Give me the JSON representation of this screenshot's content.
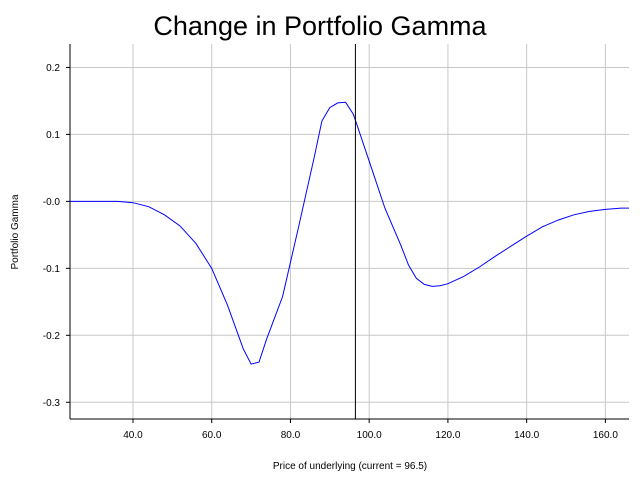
{
  "chart_data": {
    "type": "line",
    "title": "Change in Portfolio Gamma",
    "xlabel": "Price of underlying (current = 96.5)",
    "ylabel": "Portfolio Gamma",
    "xlim": [
      24,
      166
    ],
    "ylim": [
      -0.325,
      0.235
    ],
    "x_ticks": [
      40,
      60,
      80,
      100,
      120,
      140,
      160
    ],
    "x_tick_labels": [
      "40.0",
      "60.0",
      "80.0",
      "100.0",
      "120.0",
      "140.0",
      "160.0"
    ],
    "y_ticks": [
      0.2,
      0.1,
      0.0,
      -0.1,
      -0.2,
      -0.3
    ],
    "y_tick_labels": [
      "0.2",
      "0.1",
      "-0.0",
      "-0.1",
      "-0.2",
      "-0.3"
    ],
    "grid": true,
    "vline_x": 96.5,
    "series": [
      {
        "color": "#0000ff",
        "x": [
          24,
          28,
          32,
          36,
          40,
          44,
          48,
          52,
          56,
          60,
          64,
          68,
          70,
          72,
          74,
          78,
          82,
          86,
          88,
          90,
          92,
          94,
          96,
          100,
          104,
          108,
          110,
          112,
          114,
          116,
          118,
          120,
          124,
          128,
          132,
          136,
          140,
          144,
          148,
          152,
          156,
          160,
          164,
          166
        ],
        "y": [
          0,
          0,
          0,
          0,
          -0.002,
          -0.008,
          -0.02,
          -0.037,
          -0.063,
          -0.1,
          -0.155,
          -0.22,
          -0.243,
          -0.24,
          -0.205,
          -0.142,
          -0.04,
          0.065,
          0.12,
          0.14,
          0.147,
          0.148,
          0.13,
          0.06,
          -0.01,
          -0.065,
          -0.095,
          -0.115,
          -0.124,
          -0.127,
          -0.126,
          -0.123,
          -0.112,
          -0.098,
          -0.082,
          -0.067,
          -0.052,
          -0.038,
          -0.028,
          -0.02,
          -0.015,
          -0.012,
          -0.01,
          -0.01
        ]
      }
    ]
  }
}
